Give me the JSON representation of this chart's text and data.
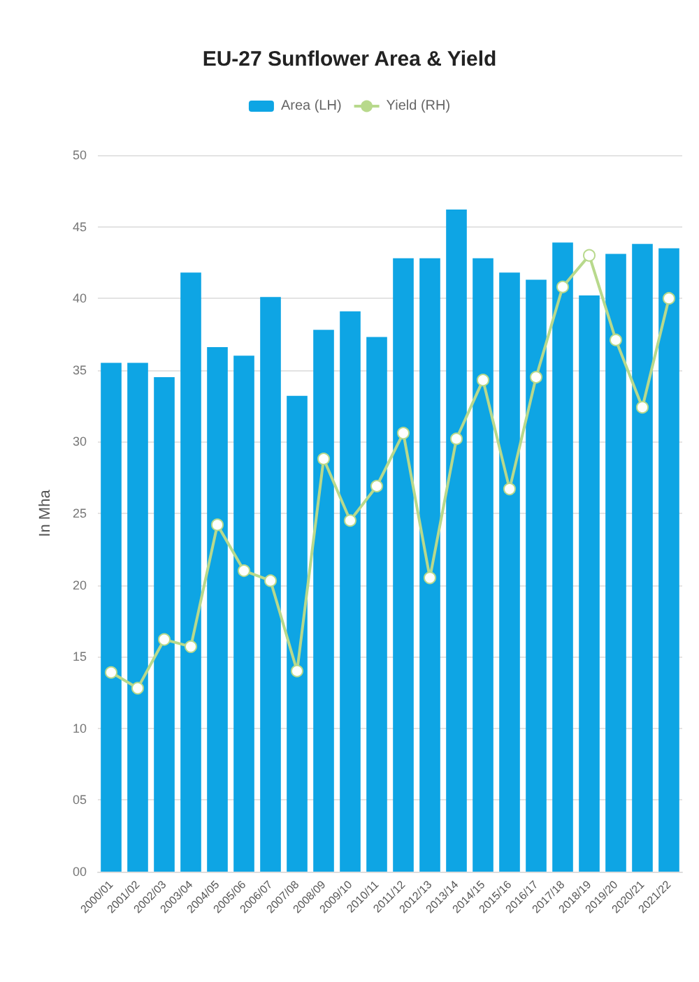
{
  "chart_data": {
    "type": "bar",
    "title": "EU-27 Sunflower Area & Yield",
    "ylabel": "In Mha",
    "categories": [
      "2000/01",
      "2001/02",
      "2002/03",
      "2003/04",
      "2004/05",
      "2005/06",
      "2006/07",
      "2007/08",
      "2008/09",
      "2009/10",
      "2010/11",
      "2011/12",
      "2012/13",
      "2013/14",
      "2014/15",
      "2015/16",
      "2016/17",
      "2017/18",
      "2018/19",
      "2019/20",
      "2020/21",
      "2021/22"
    ],
    "series": [
      {
        "name": "Area (LH)",
        "color": "#0ea5e4",
        "values": [
          35.5,
          35.5,
          34.5,
          41.8,
          36.6,
          36.0,
          40.1,
          33.2,
          37.8,
          39.1,
          37.3,
          42.8,
          42.8,
          46.2,
          42.8,
          41.8,
          41.3,
          43.9,
          40.2,
          43.1,
          43.8,
          43.5
        ]
      },
      {
        "name": "Yield (RH)",
        "type": "line",
        "color": "#b8d98c",
        "values": [
          13.9,
          12.8,
          16.2,
          15.7,
          24.2,
          21.0,
          20.3,
          14.0,
          28.8,
          24.5,
          26.9,
          30.6,
          20.5,
          30.2,
          34.3,
          26.7,
          34.5,
          40.8,
          43.0,
          37.1,
          32.4,
          40.0
        ]
      }
    ],
    "ylim": [
      0,
      50
    ],
    "yticks": [
      {
        "value": 0,
        "label": "00"
      },
      {
        "value": 5,
        "label": "05"
      },
      10,
      15,
      20,
      25,
      30,
      35,
      40,
      45,
      50
    ],
    "grid": "y",
    "legend": "top",
    "marker": "circle"
  }
}
